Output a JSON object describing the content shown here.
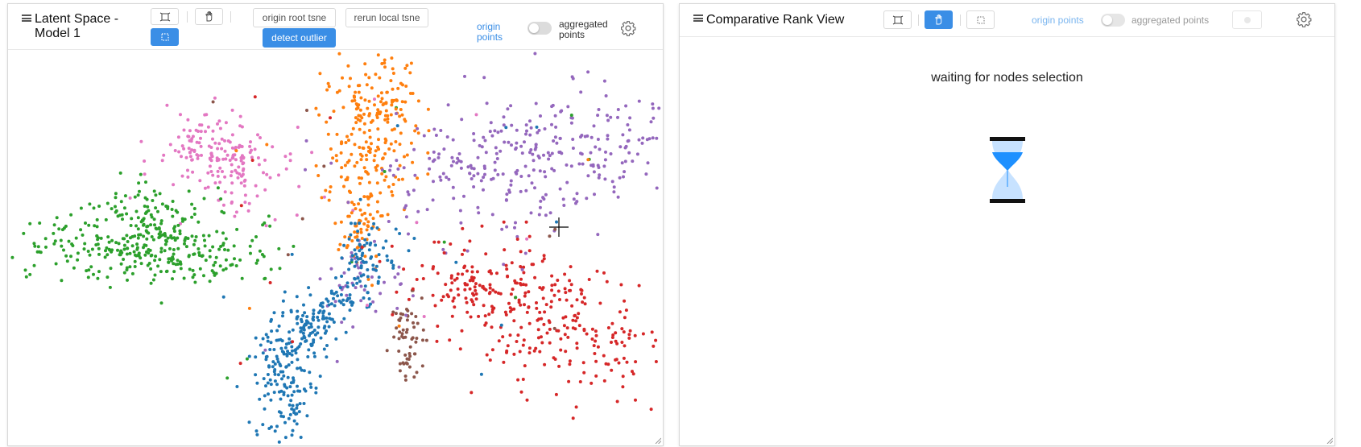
{
  "left_panel": {
    "title_line1": "Latent Space -",
    "title_line2": "Model 1",
    "tools": [
      "rect-select-icon",
      "hand-pan-icon",
      "dotted-select-icon"
    ],
    "buttons": {
      "origin_root_tsne": "origin root tsne",
      "rerun_local_tsne": "rerun local tsne",
      "detect_outlier": "detect outlier"
    },
    "origin_points_label_1": "origin",
    "origin_points_label_2": "points",
    "aggregated_label_1": "aggregated",
    "aggregated_label_2": "points",
    "aggregated_toggle_on": false,
    "colors": {
      "accent": "#3a8ee6",
      "blue": "#1f77b4",
      "orange": "#ff7f0e",
      "green": "#2ca02c",
      "red": "#d62728",
      "purple": "#9467bd",
      "brown": "#8c564b",
      "pink": "#e377c2"
    }
  },
  "right_panel": {
    "title": "Comparative Rank View",
    "origin_points_label": "origin points",
    "aggregated_label": "aggregated points",
    "aggregated_toggle_on": false,
    "waiting_text": "waiting for nodes selection",
    "hourglass_colors": {
      "frame": "#111111",
      "sand": "#1e90ff",
      "glass": "#c7e2ff"
    }
  }
}
